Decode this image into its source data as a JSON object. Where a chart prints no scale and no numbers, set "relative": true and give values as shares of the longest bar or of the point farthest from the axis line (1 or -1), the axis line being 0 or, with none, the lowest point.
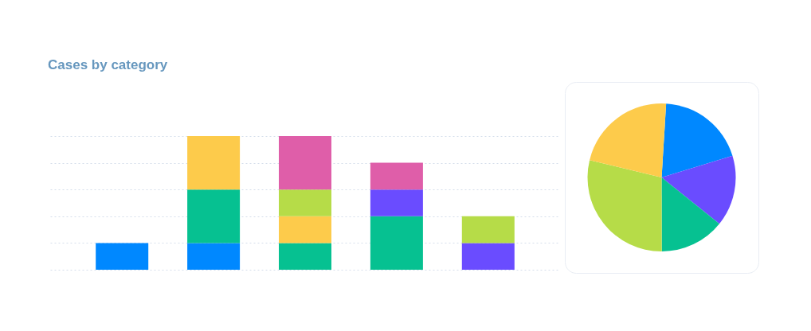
{
  "chart_data": [
    {
      "type": "bar",
      "title": "Cases by category",
      "categories": [
        null,
        null,
        null,
        null,
        null
      ],
      "stacked": true,
      "relative": true,
      "grid": "y",
      "series": [
        {
          "color": "#0088ff",
          "values": [
            0.2,
            0.2,
            null,
            null,
            null
          ]
        },
        {
          "color": "#06c191",
          "values": [
            null,
            0.4,
            0.2,
            0.4,
            null
          ]
        },
        {
          "color": "#6a4cff",
          "values": [
            null,
            null,
            null,
            0.2,
            0.2
          ]
        },
        {
          "color": "#fdcb4b",
          "values": [
            null,
            0.4,
            0.2,
            null,
            null
          ]
        },
        {
          "color": "#b6dc48",
          "values": [
            null,
            null,
            0.2,
            null,
            0.2
          ]
        },
        {
          "color": "#df5ea9",
          "values": [
            null,
            null,
            0.4,
            0.2,
            null
          ]
        }
      ]
    },
    {
      "type": "pie",
      "categories": [
        null,
        null,
        null,
        null,
        null
      ],
      "values": [
        19.3,
        15.5,
        14.2,
        28.8,
        22.2
      ],
      "colors": [
        "#0088ff",
        "#6a4cff",
        "#06c191",
        "#b6dc48",
        "#fdcb4b"
      ]
    }
  ]
}
